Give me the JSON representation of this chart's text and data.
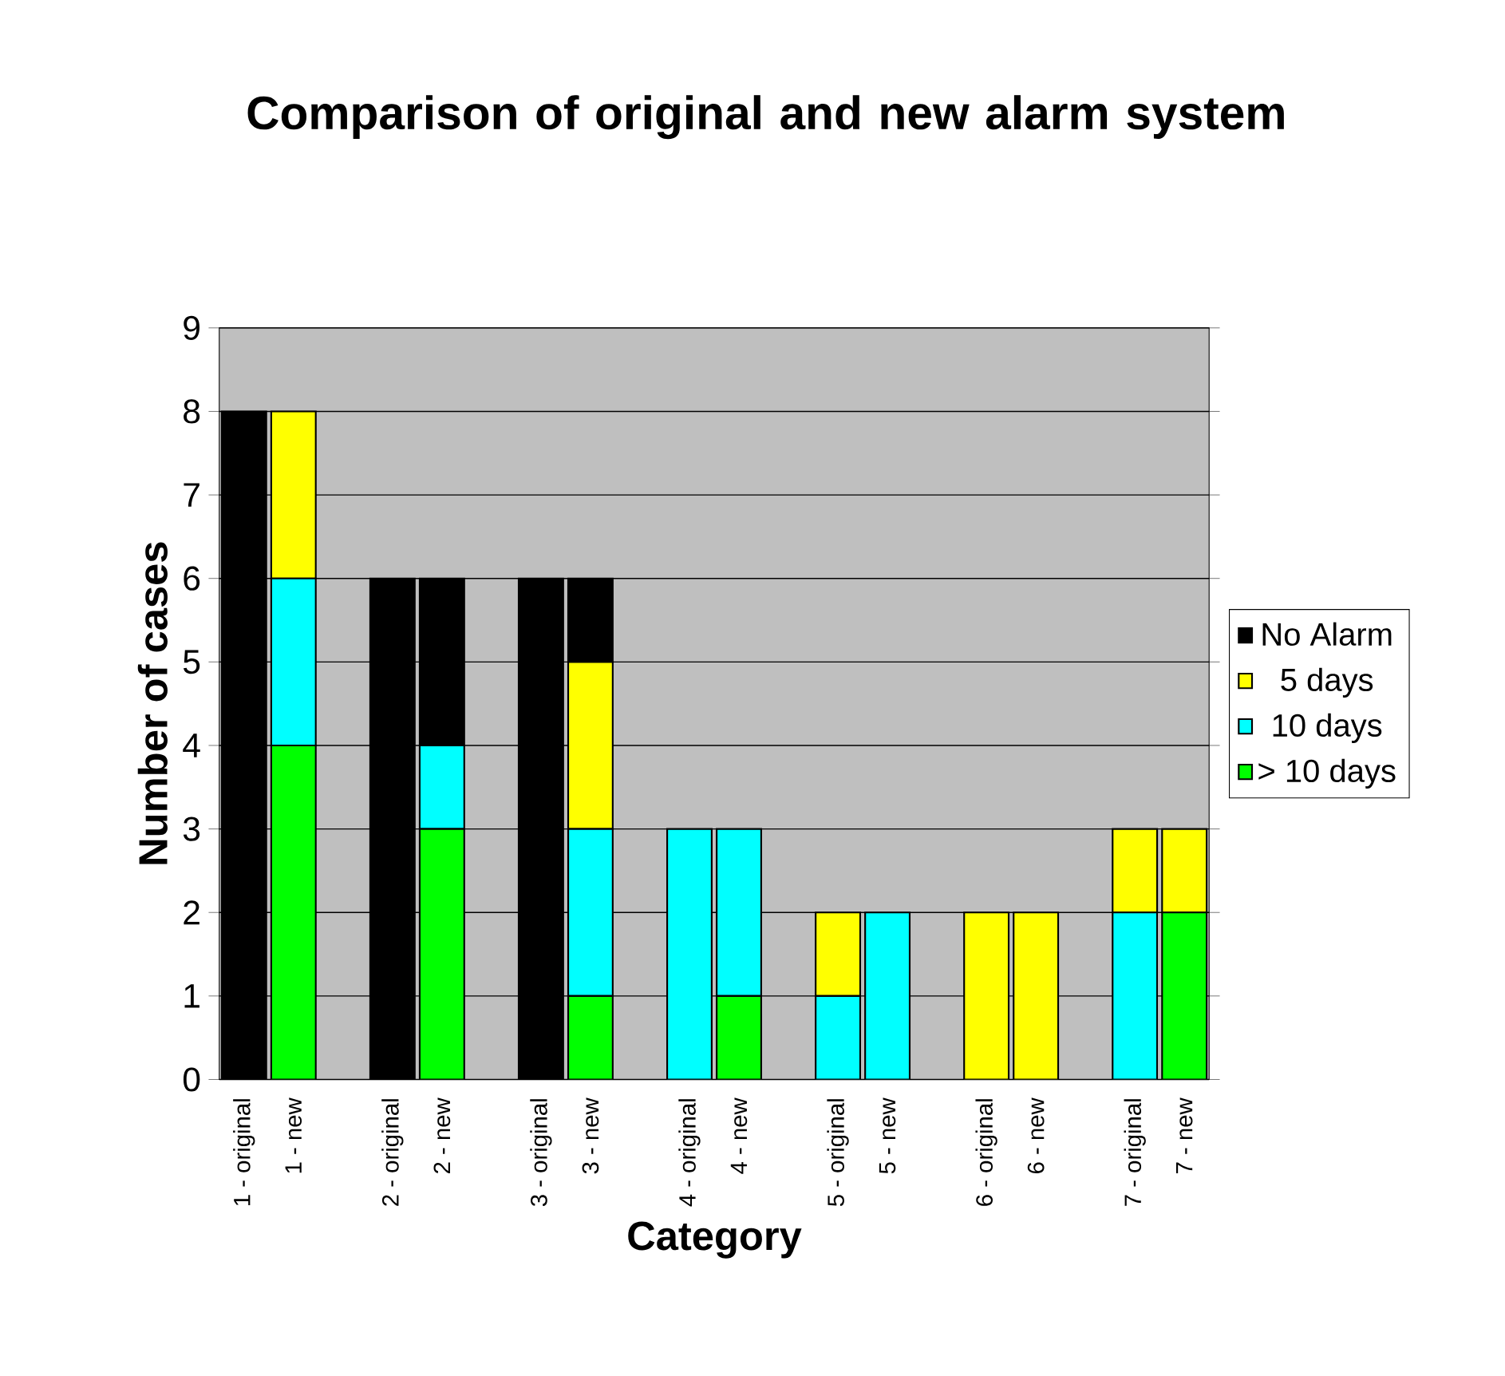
{
  "chart_data": {
    "type": "bar",
    "title": "Comparison of original and new alarm system",
    "xlabel": "Category",
    "ylabel": "Number of cases",
    "categories": [
      "1 - original",
      "1 - new",
      null,
      "2 - original",
      "2 - new",
      null,
      "3 - original",
      "3 - new",
      null,
      "4 - original",
      "4 - new",
      null,
      "5 - original",
      "5 - new",
      null,
      "6 - original",
      "6 - new",
      null,
      "7 - original",
      "7 - new"
    ],
    "stacked": true,
    "series": [
      {
        "name": "> 10 days",
        "color": "#00ff00",
        "values": [
          0,
          4,
          0,
          0,
          3,
          0,
          0,
          1,
          0,
          0,
          1,
          0,
          0,
          0,
          0,
          0,
          0,
          0,
          0,
          2
        ]
      },
      {
        "name": "10 days",
        "color": "#00ffff",
        "values": [
          0,
          2,
          0,
          0,
          1,
          0,
          0,
          2,
          0,
          3,
          2,
          0,
          1,
          2,
          0,
          0,
          0,
          0,
          2,
          0
        ]
      },
      {
        "name": "5 days",
        "color": "#ffff00",
        "values": [
          0,
          2,
          0,
          0,
          0,
          0,
          0,
          2,
          0,
          0,
          0,
          0,
          1,
          0,
          0,
          2,
          2,
          0,
          1,
          1
        ]
      },
      {
        "name": "No Alarm",
        "color": "#000000",
        "values": [
          8,
          0,
          0,
          6,
          2,
          0,
          6,
          1,
          0,
          0,
          0,
          0,
          0,
          0,
          0,
          0,
          0,
          0,
          0,
          0
        ]
      }
    ],
    "ylim": [
      0,
      9
    ],
    "yticks": [
      0,
      1,
      2,
      3,
      4,
      5,
      6,
      7,
      8,
      9
    ],
    "grid": "y",
    "legend": "right"
  }
}
